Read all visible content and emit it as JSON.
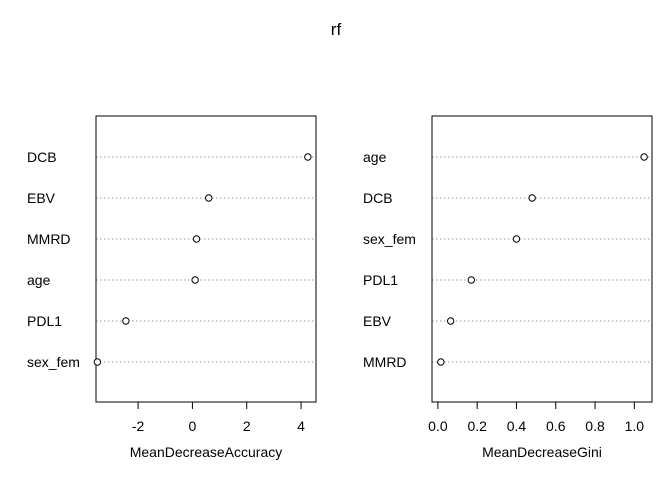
{
  "title": "rf",
  "chart_data": [
    {
      "type": "scatter",
      "subtype": "dotchart",
      "xlabel": "MeanDecreaseAccuracy",
      "xlim": [
        -3.55,
        4.55
      ],
      "ticks": [
        -2,
        0,
        2,
        4
      ],
      "tick_labels": [
        "-2",
        "0",
        "2",
        "4"
      ],
      "categories": [
        "DCB",
        "EBV",
        "MMRD",
        "age",
        "PDL1",
        "sex_fem"
      ],
      "values": [
        4.25,
        0.6,
        0.15,
        0.1,
        -2.45,
        -3.5
      ]
    },
    {
      "type": "scatter",
      "subtype": "dotchart",
      "xlabel": "MeanDecreaseGini",
      "xlim": [
        -0.03,
        1.09
      ],
      "ticks": [
        0.0,
        0.2,
        0.4,
        0.6,
        0.8,
        1.0
      ],
      "tick_labels": [
        "0.0",
        "0.2",
        "0.4",
        "0.6",
        "0.8",
        "1.0"
      ],
      "categories": [
        "age",
        "DCB",
        "sex_fem",
        "PDL1",
        "EBV",
        "MMRD"
      ],
      "values": [
        1.05,
        0.48,
        0.4,
        0.17,
        0.065,
        0.015
      ]
    }
  ]
}
